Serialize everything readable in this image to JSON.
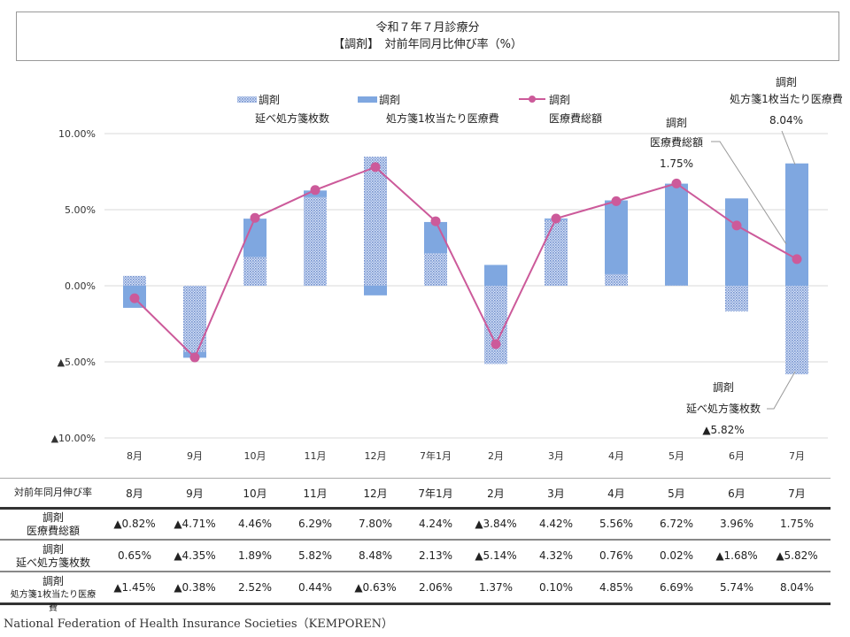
{
  "title": {
    "line1": "令和７年７月診療分",
    "line2": "【調剤】　対前年同月比伸び率（%）"
  },
  "chart_data": {
    "type": "bar",
    "categories": [
      "8月",
      "9月",
      "10月",
      "11月",
      "12月",
      "7年1月",
      "2月",
      "3月",
      "4月",
      "5月",
      "6月",
      "7月"
    ],
    "ylim": [
      -10,
      10
    ],
    "yticks": [
      {
        "v": 10,
        "label": "10.00%"
      },
      {
        "v": 5,
        "label": "5.00%"
      },
      {
        "v": 0,
        "label": "0.00%"
      },
      {
        "v": -5,
        "label": "▲5.00%"
      },
      {
        "v": -10,
        "label": "▲10.00%"
      }
    ],
    "grid": true,
    "legend_position": "top",
    "series": [
      {
        "name": "調剤 延べ処方箋枚数",
        "l1": "調剤",
        "l2": "延べ処方箋枚数",
        "kind": "bar-pattern",
        "color": "#8fa9dc",
        "values": [
          0.65,
          -4.35,
          1.89,
          5.82,
          8.48,
          2.13,
          -5.14,
          4.32,
          0.76,
          0.02,
          -1.68,
          -5.82
        ]
      },
      {
        "name": "調剤 処方箋1枚当たり医療費",
        "l1": "調剤",
        "l2": "処方箋1枚当たり医療費",
        "kind": "bar-solid",
        "color": "#7fa7e0",
        "values": [
          -1.45,
          -0.38,
          2.52,
          0.44,
          -0.63,
          2.06,
          1.37,
          0.1,
          4.85,
          6.69,
          5.74,
          8.04
        ]
      },
      {
        "name": "調剤 医療費総額",
        "l1": "調剤",
        "l2": "医療費総額",
        "kind": "line",
        "color": "#cc5a9a",
        "values": [
          -0.82,
          -4.71,
          4.46,
          6.29,
          7.8,
          4.24,
          -3.84,
          4.42,
          5.56,
          6.72,
          3.96,
          1.75
        ]
      }
    ],
    "annotations": [
      {
        "l1": "調剤",
        "l2": "処方箋1枚当たり医療費",
        "l3": "8.04%"
      },
      {
        "l1": "調剤",
        "l2": "医療費総額",
        "l3": "1.75%"
      },
      {
        "l1": "調剤",
        "l2": "延べ処方箋枚数",
        "l3": "▲5.82%"
      }
    ]
  },
  "table": {
    "header": "対前年同月伸び率",
    "months": [
      "8月",
      "9月",
      "10月",
      "11月",
      "12月",
      "7年1月",
      "2月",
      "3月",
      "4月",
      "5月",
      "6月",
      "7月"
    ],
    "rows": [
      {
        "l1": "調剤",
        "l2": "医療費総額",
        "cells": [
          "▲0.82%",
          "▲4.71%",
          "4.46%",
          "6.29%",
          "7.80%",
          "4.24%",
          "▲3.84%",
          "4.42%",
          "5.56%",
          "6.72%",
          "3.96%",
          "1.75%"
        ]
      },
      {
        "l1": "調剤",
        "l2": "延べ処方箋枚数",
        "cells": [
          "0.65%",
          "▲4.35%",
          "1.89%",
          "5.82%",
          "8.48%",
          "2.13%",
          "▲5.14%",
          "4.32%",
          "0.76%",
          "0.02%",
          "▲1.68%",
          "▲5.82%"
        ]
      },
      {
        "l1": "調剤",
        "l2": "処方箋1枚当たり医療費",
        "cells": [
          "▲1.45%",
          "▲0.38%",
          "2.52%",
          "0.44%",
          "▲0.63%",
          "2.06%",
          "1.37%",
          "0.10%",
          "4.85%",
          "6.69%",
          "5.74%",
          "8.04%"
        ]
      }
    ]
  },
  "footer": "National Federation of Health Insurance Societies（KEMPOREN）"
}
